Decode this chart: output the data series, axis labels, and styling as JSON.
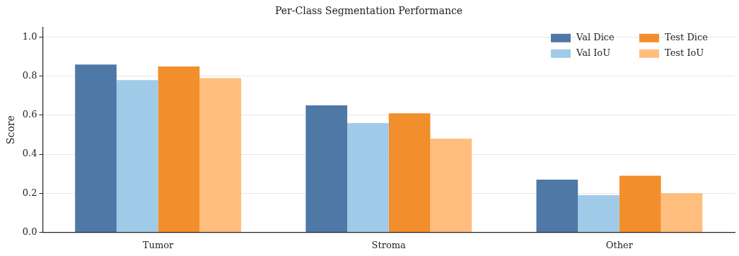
{
  "chart_data": {
    "type": "bar",
    "title": "Per-Class Segmentation Performance",
    "ylabel": "Score",
    "categories": [
      "Tumor",
      "Stroma",
      "Other"
    ],
    "series": [
      {
        "name": "Val Dice",
        "color": "#4e79a7",
        "values": [
          0.86,
          0.65,
          0.27
        ]
      },
      {
        "name": "Val IoU",
        "color": "#a0cbe8",
        "values": [
          0.78,
          0.56,
          0.19
        ]
      },
      {
        "name": "Test Dice",
        "color": "#f28e2b",
        "values": [
          0.85,
          0.61,
          0.29
        ]
      },
      {
        "name": "Test IoU",
        "color": "#ffbe7d",
        "values": [
          0.79,
          0.48,
          0.2
        ]
      }
    ],
    "ylim": [
      0,
      1.05
    ],
    "yticks": [
      {
        "value": 0,
        "label": "0.0"
      },
      {
        "value": 0.2,
        "label": "0.2"
      },
      {
        "value": 0.4,
        "label": "0.4"
      },
      {
        "value": 0.6,
        "label": "0.6"
      },
      {
        "value": 0.8,
        "label": "0.8"
      },
      {
        "value": 1,
        "label": "1.0"
      }
    ],
    "grid": "y",
    "legend": "top right"
  }
}
